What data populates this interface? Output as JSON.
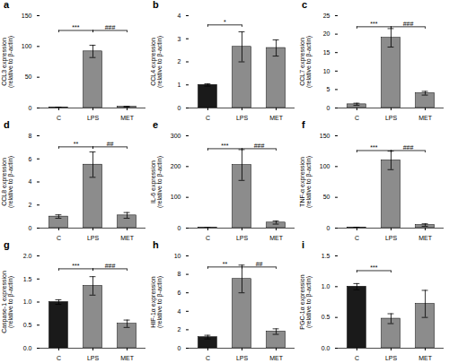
{
  "chart_data": [
    {
      "type": "bar",
      "title": "a",
      "ylabel": "CCL3 expression\n(relative to β-actin)",
      "categories": [
        "C",
        "LPS",
        "MET"
      ],
      "values": [
        1,
        92,
        2
      ],
      "error": [
        0.5,
        10,
        0.8
      ],
      "colors": [
        "#8c8c8c",
        "#8c8c8c",
        "#8c8c8c"
      ],
      "ylim": [
        0,
        150
      ],
      "yticks": [
        0,
        50,
        100,
        150
      ],
      "annotations": [
        {
          "x1": "C",
          "x2": "LPS",
          "y": 126,
          "label": "***"
        },
        {
          "x1": "LPS",
          "x2": "MET",
          "y": 126,
          "label": "###"
        }
      ]
    },
    {
      "type": "bar",
      "title": "b",
      "ylabel": "CCL4 expression\n(relative to β-actin)",
      "categories": [
        "C",
        "LPS",
        "MET"
      ],
      "values": [
        1.0,
        2.65,
        2.6
      ],
      "error": [
        0.05,
        0.65,
        0.35
      ],
      "colors": [
        "#1a1a1a",
        "#8c8c8c",
        "#8c8c8c"
      ],
      "ylim": [
        0,
        4
      ],
      "yticks": [
        0,
        1,
        2,
        3,
        4
      ],
      "annotations": [
        {
          "x1": "C",
          "x2": "LPS",
          "y": 3.6,
          "label": "*"
        }
      ]
    },
    {
      "type": "bar",
      "title": "c",
      "ylabel": "CCL7 expression\n(relative to β-actin)",
      "categories": [
        "C",
        "LPS",
        "MET"
      ],
      "values": [
        1,
        19,
        4
      ],
      "error": [
        0.3,
        2.5,
        0.5
      ],
      "colors": [
        "#8c8c8c",
        "#8c8c8c",
        "#8c8c8c"
      ],
      "ylim": [
        0,
        25
      ],
      "yticks": [
        0,
        5,
        10,
        15,
        20,
        25
      ],
      "annotations": [
        {
          "x1": "C",
          "x2": "LPS",
          "y": 22,
          "label": "***"
        },
        {
          "x1": "LPS",
          "x2": "MET",
          "y": 22,
          "label": "###"
        }
      ]
    },
    {
      "type": "bar",
      "title": "d",
      "ylabel": "CCL8 expression\n(relative to β-actin)",
      "categories": [
        "C",
        "LPS",
        "MET"
      ],
      "values": [
        1.0,
        5.5,
        1.1
      ],
      "error": [
        0.15,
        1.1,
        0.25
      ],
      "colors": [
        "#8c8c8c",
        "#8c8c8c",
        "#8c8c8c"
      ],
      "ylim": [
        0,
        8
      ],
      "yticks": [
        0,
        2,
        4,
        6,
        8
      ],
      "annotations": [
        {
          "x1": "C",
          "x2": "LPS",
          "y": 7.04,
          "label": "**"
        },
        {
          "x1": "LPS",
          "x2": "MET",
          "y": 7.04,
          "label": "##"
        }
      ]
    },
    {
      "type": "bar",
      "title": "e",
      "ylabel": "IL-6 expression\n(relative to β-actin)",
      "categories": [
        "C",
        "LPS",
        "MET"
      ],
      "values": [
        1,
        205,
        18
      ],
      "error": [
        0.5,
        50,
        5
      ],
      "colors": [
        "#8c8c8c",
        "#8c8c8c",
        "#8c8c8c"
      ],
      "ylim": [
        0,
        300
      ],
      "yticks": [
        0,
        100,
        200,
        300
      ],
      "annotations": [
        {
          "x1": "C",
          "x2": "LPS",
          "y": 258,
          "label": "***"
        },
        {
          "x1": "LPS",
          "x2": "MET",
          "y": 258,
          "label": "###"
        }
      ]
    },
    {
      "type": "bar",
      "title": "f",
      "ylabel": "TNF-α expression\n(relative to β-actin)",
      "categories": [
        "C",
        "LPS",
        "MET"
      ],
      "values": [
        1,
        110,
        5
      ],
      "error": [
        0.5,
        15,
        2
      ],
      "colors": [
        "#8c8c8c",
        "#8c8c8c",
        "#8c8c8c"
      ],
      "ylim": [
        0,
        150
      ],
      "yticks": [
        0,
        50,
        100,
        150
      ],
      "annotations": [
        {
          "x1": "C",
          "x2": "LPS",
          "y": 126,
          "label": "***"
        },
        {
          "x1": "LPS",
          "x2": "MET",
          "y": 126,
          "label": "###"
        }
      ]
    },
    {
      "type": "bar",
      "title": "g",
      "ylabel": "Caspase-1 expression\n(relative to β-actin)",
      "categories": [
        "C",
        "LPS",
        "MET"
      ],
      "values": [
        1.0,
        1.35,
        0.53
      ],
      "error": [
        0.05,
        0.2,
        0.08
      ],
      "colors": [
        "#1a1a1a",
        "#8c8c8c",
        "#8c8c8c"
      ],
      "ylim": [
        0,
        2.0
      ],
      "yticks": [
        {
          "value": 0,
          "label": "0.0"
        },
        0.5,
        {
          "value": 1.0,
          "label": "1.0"
        },
        1.5,
        {
          "value": 2.0,
          "label": "2.0"
        }
      ],
      "annotations": [
        {
          "x1": "C",
          "x2": "LPS",
          "y": 1.72,
          "label": "***"
        },
        {
          "x1": "LPS",
          "x2": "MET",
          "y": 1.72,
          "label": "###"
        }
      ]
    },
    {
      "type": "bar",
      "title": "h",
      "ylabel": "HIF-1α expression\n(relative to β-actin)",
      "categories": [
        "C",
        "LPS",
        "MET"
      ],
      "values": [
        1.2,
        7.5,
        1.8
      ],
      "error": [
        0.2,
        1.5,
        0.3
      ],
      "colors": [
        "#1a1a1a",
        "#8c8c8c",
        "#8c8c8c"
      ],
      "ylim": [
        0,
        10
      ],
      "yticks": [
        0,
        2,
        4,
        6,
        8,
        10
      ],
      "annotations": [
        {
          "x1": "C",
          "x2": "LPS",
          "y": 8.8,
          "label": "**"
        },
        {
          "x1": "LPS",
          "x2": "MET",
          "y": 8.8,
          "label": "##"
        }
      ]
    },
    {
      "type": "bar",
      "title": "i",
      "ylabel": "PGC-1α expression\n(relative to β-actin)",
      "categories": [
        "C",
        "LPS",
        "MET"
      ],
      "values": [
        1.0,
        0.48,
        0.72
      ],
      "error": [
        0.05,
        0.08,
        0.22
      ],
      "colors": [
        "#1a1a1a",
        "#8c8c8c",
        "#8c8c8c"
      ],
      "ylim": [
        0,
        1.5
      ],
      "yticks": [
        {
          "value": 0,
          "label": "0.0"
        },
        0.5,
        {
          "value": 1.0,
          "label": "1.0"
        },
        1.5
      ],
      "annotations": [
        {
          "x1": "C",
          "x2": "LPS",
          "y": 1.26,
          "label": "***"
        }
      ]
    }
  ]
}
